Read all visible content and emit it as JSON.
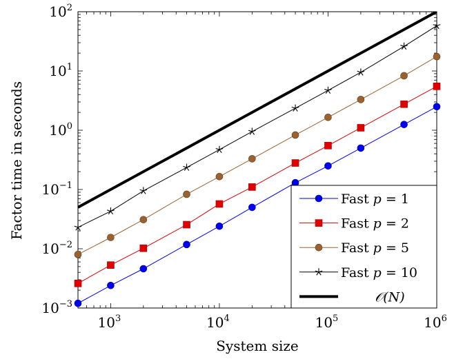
{
  "chart_data": {
    "type": "line",
    "xscale": "log",
    "yscale": "log",
    "xlabel": "System size",
    "ylabel": "Factor time in seconds",
    "xlim": [
      500,
      1000000
    ],
    "ylim": [
      0.001,
      100
    ],
    "x_ticks": [
      {
        "value": 1000,
        "base": "10",
        "exp": "3"
      },
      {
        "value": 10000,
        "base": "10",
        "exp": "4"
      },
      {
        "value": 100000,
        "base": "10",
        "exp": "5"
      },
      {
        "value": 1000000,
        "base": "10",
        "exp": "6"
      }
    ],
    "y_ticks": [
      {
        "value": 0.001,
        "base": "10",
        "exp": "−3"
      },
      {
        "value": 0.01,
        "base": "10",
        "exp": "−2"
      },
      {
        "value": 0.1,
        "base": "10",
        "exp": "−1"
      },
      {
        "value": 1,
        "base": "10",
        "exp": "0"
      },
      {
        "value": 10,
        "base": "10",
        "exp": "1"
      },
      {
        "value": 100,
        "base": "10",
        "exp": "2"
      }
    ],
    "x": [
      500,
      1000,
      2000,
      5000,
      10000,
      20000,
      50000,
      100000,
      200000,
      500000,
      1000000
    ],
    "series": [
      {
        "name": "Fast p = 1",
        "legend_prefix": "Fast ",
        "legend_var": "p",
        "legend_suffix": " = 1",
        "color": "#0000ee",
        "marker": "circle",
        "values": [
          0.0012,
          0.0024,
          0.0046,
          0.0118,
          0.024,
          0.05,
          0.13,
          0.25,
          0.5,
          1.25,
          2.5
        ]
      },
      {
        "name": "Fast p = 2",
        "legend_prefix": "Fast ",
        "legend_var": "p",
        "legend_suffix": " = 2",
        "color": "#e00000",
        "marker": "square",
        "values": [
          0.0026,
          0.0053,
          0.0102,
          0.0255,
          0.057,
          0.11,
          0.28,
          0.55,
          1.1,
          2.75,
          5.5
        ]
      },
      {
        "name": "Fast p = 5",
        "legend_prefix": "Fast ",
        "legend_var": "p",
        "legend_suffix": " = 5",
        "color": "#9b6230",
        "marker": "circle",
        "values": [
          0.008,
          0.0155,
          0.031,
          0.083,
          0.165,
          0.33,
          0.83,
          1.65,
          3.3,
          8.3,
          17.5
        ]
      },
      {
        "name": "Fast p = 10",
        "legend_prefix": "Fast ",
        "legend_var": "p",
        "legend_suffix": " = 10",
        "color": "#000000",
        "marker": "star",
        "values": [
          0.023,
          0.043,
          0.095,
          0.235,
          0.47,
          0.95,
          2.35,
          4.7,
          9.5,
          26,
          58
        ]
      },
      {
        "name": "O(N)",
        "legend_math": "𝒪(N)",
        "color": "#000000",
        "marker": "none",
        "line_width": 4,
        "x": [
          500,
          1000000
        ],
        "values": [
          0.05,
          100
        ]
      }
    ],
    "legend_position": "bottom-right",
    "grid": false
  }
}
